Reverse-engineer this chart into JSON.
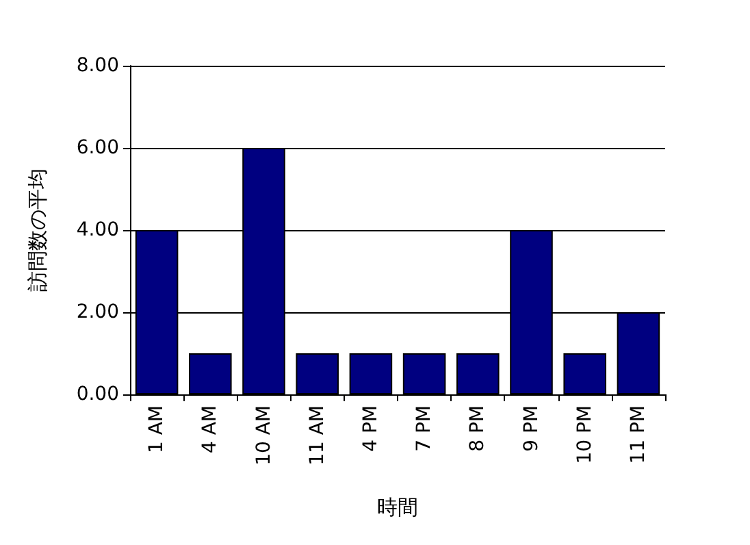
{
  "chart_data": {
    "type": "bar",
    "xlabel": "時間",
    "ylabel": "訪問数の平均",
    "categories": [
      "1 AM",
      "4 AM",
      "10 AM",
      "11 AM",
      "4 PM",
      "7 PM",
      "8 PM",
      "9 PM",
      "10 PM",
      "11 PM"
    ],
    "values": [
      4,
      1,
      6,
      1,
      1,
      1,
      1,
      4,
      1,
      2
    ],
    "color": "#000080",
    "ylim": [
      0,
      8
    ],
    "yticks": [
      {
        "value": 0,
        "label": "0.00"
      },
      {
        "value": 2,
        "label": "2.00"
      },
      {
        "value": 4,
        "label": "4.00"
      },
      {
        "value": 6,
        "label": "6.00"
      },
      {
        "value": 8,
        "label": "8.00"
      }
    ],
    "grid": "y"
  }
}
